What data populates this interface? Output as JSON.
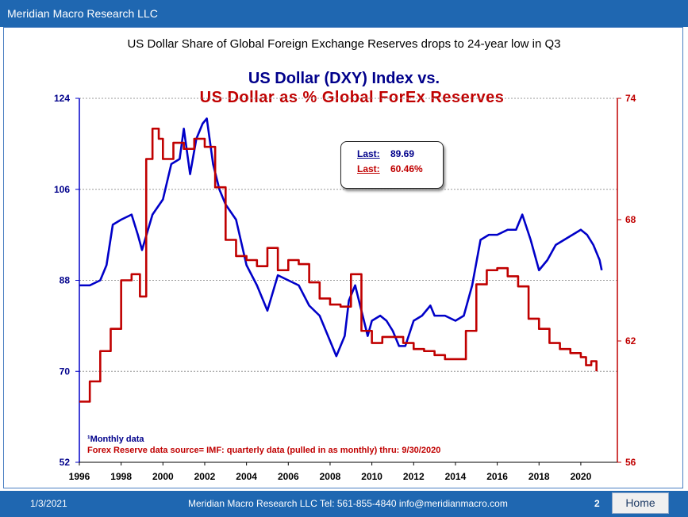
{
  "header": {
    "title": "Meridian Macro Research LLC"
  },
  "subtitle": "US Dollar Share of Global Foreign Exchange Reserves drops to 24-year low in Q3",
  "title": {
    "line1_a": "US Dollar (DXY) Index",
    "line1_b": " vs.",
    "line2": "US Dollar as % Global ForEx Reserves"
  },
  "last_box": {
    "label1": "Last:",
    "value1": "89.69",
    "label2": "Last:",
    "value2": "60.46%"
  },
  "notes": {
    "note1": "¹Monthly data",
    "note2": "Forex Reserve data source= IMF: quarterly data (pulled in as monthly) thru:  9/30/2020"
  },
  "footer": {
    "date": "1/3/2021",
    "center": "Meridian Macro Research LLC   Tel: 561-855-4840   info@meridianmacro.com",
    "page": "2",
    "home_label": "Home"
  },
  "colors": {
    "blue": "#0000c8",
    "red": "#c00000",
    "bar": "#1f67b1"
  },
  "chart_data": {
    "type": "line",
    "title": "US Dollar (DXY) Index vs. US Dollar as % Global ForEx Reserves",
    "x_ticks": [
      "1996",
      "1998",
      "2000",
      "2002",
      "2004",
      "2006",
      "2008",
      "2010",
      "2012",
      "2014",
      "2016",
      "2018",
      "2020"
    ],
    "xlim": [
      1996,
      2021.75
    ],
    "left_axis": {
      "ticks": [
        "52",
        "70",
        "88",
        "106",
        "124"
      ],
      "ylim": [
        52,
        124
      ]
    },
    "right_axis": {
      "ticks": [
        "56",
        "62",
        "68",
        "74"
      ],
      "ylim": [
        56,
        74
      ]
    },
    "series": [
      {
        "name": "US Dollar (DXY) Index",
        "axis": "left",
        "x": [
          1996.0,
          1996.5,
          1997.0,
          1997.3,
          1997.6,
          1998.0,
          1998.5,
          1998.8,
          1999.0,
          1999.5,
          2000.0,
          2000.4,
          2000.8,
          2001.0,
          2001.3,
          2001.6,
          2001.9,
          2002.1,
          2002.4,
          2002.7,
          2003.0,
          2003.5,
          2004.0,
          2004.5,
          2005.0,
          2005.5,
          2006.0,
          2006.5,
          2007.0,
          2007.5,
          2008.0,
          2008.3,
          2008.7,
          2008.9,
          2009.2,
          2009.5,
          2009.8,
          2010.0,
          2010.4,
          2010.7,
          2011.0,
          2011.3,
          2011.6,
          2012.0,
          2012.4,
          2012.8,
          2013.0,
          2013.5,
          2014.0,
          2014.4,
          2014.8,
          2015.2,
          2015.6,
          2016.0,
          2016.5,
          2016.9,
          2017.2,
          2017.6,
          2018.0,
          2018.4,
          2018.8,
          2019.2,
          2019.6,
          2020.0,
          2020.3,
          2020.6,
          2020.9,
          2021.0
        ],
        "values": [
          87,
          87,
          88,
          91,
          99,
          100,
          101,
          97,
          94,
          101,
          104,
          111,
          112,
          118,
          109,
          116,
          119,
          120,
          111,
          106,
          103,
          100,
          91,
          87,
          82,
          89,
          88,
          87,
          83,
          81,
          76,
          73,
          77,
          84,
          87,
          82,
          77,
          80,
          81,
          80,
          78,
          75,
          75,
          80,
          81,
          83,
          81,
          81,
          80,
          81,
          87,
          96,
          97,
          97,
          98,
          98,
          101,
          96,
          90,
          92,
          95,
          96,
          97,
          98,
          97,
          95,
          92,
          90
        ]
      },
      {
        "name": "US Dollar as % Global ForEx Reserves",
        "axis": "right",
        "x": [
          1996.0,
          1996.5,
          1997.0,
          1997.5,
          1998.0,
          1998.5,
          1998.9,
          1999.2,
          1999.5,
          1999.8,
          2000.0,
          2000.5,
          2001.0,
          2001.5,
          2002.0,
          2002.5,
          2003.0,
          2003.5,
          2004.0,
          2004.5,
          2005.0,
          2005.5,
          2006.0,
          2006.5,
          2007.0,
          2007.5,
          2008.0,
          2008.5,
          2009.0,
          2009.5,
          2010.0,
          2010.5,
          2011.0,
          2011.5,
          2012.0,
          2012.5,
          2013.0,
          2013.5,
          2014.0,
          2014.5,
          2015.0,
          2015.5,
          2016.0,
          2016.5,
          2017.0,
          2017.5,
          2018.0,
          2018.5,
          2019.0,
          2019.5,
          2020.0,
          2020.25,
          2020.5,
          2020.75
        ],
        "values": [
          59.0,
          60.0,
          61.5,
          62.6,
          65.0,
          65.3,
          64.2,
          71.0,
          72.5,
          72.0,
          71.0,
          71.8,
          71.5,
          72.0,
          71.6,
          69.6,
          67.0,
          66.2,
          66.0,
          65.7,
          66.6,
          65.5,
          66.0,
          65.8,
          64.9,
          64.1,
          63.8,
          63.7,
          65.3,
          62.5,
          61.9,
          62.2,
          62.2,
          61.9,
          61.6,
          61.5,
          61.3,
          61.1,
          61.1,
          62.5,
          64.8,
          65.5,
          65.6,
          65.2,
          64.7,
          63.1,
          62.6,
          61.9,
          61.6,
          61.4,
          61.2,
          60.8,
          61.0,
          60.5
        ]
      }
    ]
  }
}
